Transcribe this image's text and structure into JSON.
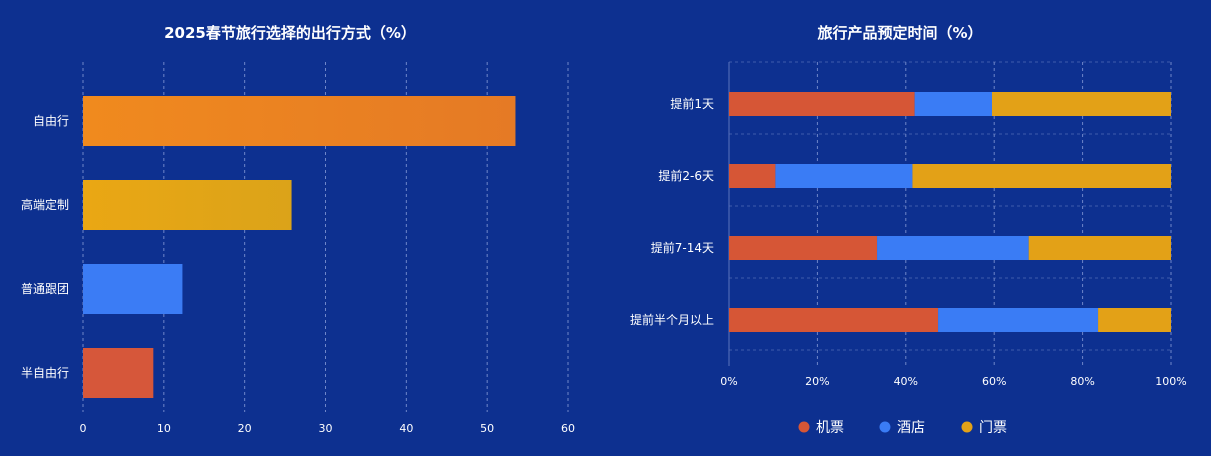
{
  "colors": {
    "background": "#0d3090",
    "grid": "#6f86c9",
    "axis": "#5a73bd",
    "self_drive_gradient": [
      "#f08a1e",
      "#e57a25"
    ],
    "custom_gradient": [
      "#eaa714",
      "#dba319"
    ],
    "group_tour": "#3d7ef6",
    "semi_self": "#d95436"
  },
  "chart_data": [
    {
      "type": "bar",
      "orientation": "horizontal",
      "title": "2025春节旅行选择的出行方式（%）",
      "categories": [
        "自由行",
        "高端定制",
        "普通跟团",
        "半自由行"
      ],
      "values": [
        53.5,
        25.8,
        12.3,
        8.7
      ],
      "colors": [
        "#ee851f",
        "#e3a416",
        "#3b7cf5",
        "#d6573a"
      ],
      "xlim": [
        0,
        60
      ],
      "xticks": [
        0,
        10,
        20,
        30,
        40,
        50,
        60
      ],
      "grid": "vertical dashed",
      "xlabel": "",
      "ylabel": ""
    },
    {
      "type": "bar",
      "orientation": "horizontal",
      "stacked": "percent",
      "title": "旅行产品预定时间（%）",
      "categories": [
        "提前1天",
        "提前2-6天",
        "提前7-14天",
        "提前半个月以上"
      ],
      "series": [
        {
          "name": "机票",
          "color": "#d65636",
          "values": [
            42,
            10.5,
            33.5,
            47.3
          ]
        },
        {
          "name": "酒店",
          "color": "#3a7cf5",
          "values": [
            17.5,
            31,
            34.3,
            36.2
          ]
        },
        {
          "name": "门票",
          "color": "#e3a117",
          "values": [
            40.5,
            58.5,
            32.2,
            16.5
          ]
        }
      ],
      "xlim": [
        0,
        100
      ],
      "xticks": [
        "0%",
        "20%",
        "40%",
        "60%",
        "80%",
        "100%"
      ],
      "legend_position": "bottom-center",
      "grid": "vertical dashed",
      "xlabel": "",
      "ylabel": ""
    }
  ]
}
